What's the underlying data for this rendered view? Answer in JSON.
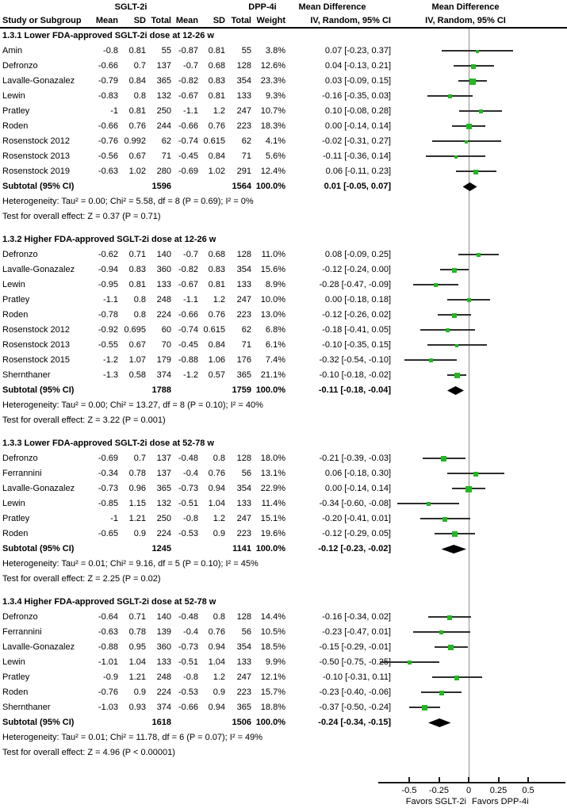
{
  "header": {
    "group1_label": "SGLT-2i",
    "group2_label": "DPP-4i",
    "effect_label": "Mean Difference",
    "method_label": "IV, Random, 95% CI",
    "study_col": "Study or Subgroup",
    "mean_col": "Mean",
    "sd_col": "SD",
    "total_col": "Total",
    "weight_col": "Weight",
    "plot_effect_label": "Mean Difference",
    "plot_method_label": "IV, Random, 95% CI"
  },
  "axis": {
    "tick_values": [
      -0.5,
      -0.25,
      0,
      0.25,
      0.5
    ],
    "tick_labels": [
      "-0.5",
      "-0.25",
      "0",
      "0.25",
      "0.5"
    ],
    "favors_left": "Favors SGLT-2i",
    "favors_right": "Favors DPP-4i"
  },
  "colors": {
    "marker_green": "#22b822",
    "ci_line": "#2e2e2e",
    "diamond": "#000000",
    "zero_line": "#909090"
  },
  "chart_data": {
    "type": "scatter",
    "subtype": "forest-plot",
    "effect_measure": "Mean Difference, IV, Random, 95% CI",
    "x_range": [
      -0.775,
      0.8
    ],
    "x_ticks": [
      -0.5,
      -0.25,
      0,
      0.25,
      0.5
    ],
    "sections": [
      {
        "title": "1.3.1 Lower FDA-approved SGLT-2i dose at 12-26 w",
        "studies": [
          {
            "name": "Amin",
            "mean1": "-0.8",
            "sd1": "0.81",
            "total1": "55",
            "mean2": "-0.87",
            "sd2": "0.81",
            "total2": "55",
            "weight": "3.8%",
            "wnum": 3.8,
            "ci_label": "0.07 [-0.23, 0.37]",
            "est": 0.07,
            "lo": -0.23,
            "hi": 0.37
          },
          {
            "name": "Defronzo",
            "mean1": "-0.66",
            "sd1": "0.7",
            "total1": "137",
            "mean2": "-0.7",
            "sd2": "0.68",
            "total2": "128",
            "weight": "12.6%",
            "wnum": 12.6,
            "ci_label": "0.04 [-0.13, 0.21]",
            "est": 0.04,
            "lo": -0.13,
            "hi": 0.21
          },
          {
            "name": "Lavalle-Gonazalez",
            "mean1": "-0.79",
            "sd1": "0.84",
            "total1": "365",
            "mean2": "-0.82",
            "sd2": "0.83",
            "total2": "354",
            "weight": "23.3%",
            "wnum": 23.3,
            "ci_label": "0.03 [-0.09, 0.15]",
            "est": 0.03,
            "lo": -0.09,
            "hi": 0.15
          },
          {
            "name": "Lewin",
            "mean1": "-0.83",
            "sd1": "0.8",
            "total1": "132",
            "mean2": "-0.67",
            "sd2": "0.81",
            "total2": "133",
            "weight": "9.3%",
            "wnum": 9.3,
            "ci_label": "-0.16 [-0.35, 0.03]",
            "est": -0.16,
            "lo": -0.35,
            "hi": 0.03
          },
          {
            "name": "Pratley",
            "mean1": "-1",
            "sd1": "0.81",
            "total1": "250",
            "mean2": "-1.1",
            "sd2": "1.2",
            "total2": "247",
            "weight": "10.7%",
            "wnum": 10.7,
            "ci_label": "0.10 [-0.08, 0.28]",
            "est": 0.1,
            "lo": -0.08,
            "hi": 0.28
          },
          {
            "name": "Roden",
            "mean1": "-0.66",
            "sd1": "0.76",
            "total1": "244",
            "mean2": "-0.66",
            "sd2": "0.76",
            "total2": "223",
            "weight": "18.3%",
            "wnum": 18.3,
            "ci_label": "0.00 [-0.14, 0.14]",
            "est": 0.0,
            "lo": -0.14,
            "hi": 0.14
          },
          {
            "name": "Rosenstock 2012",
            "mean1": "-0.76",
            "sd1": "0.992",
            "total1": "62",
            "mean2": "-0.74",
            "sd2": "0.615",
            "total2": "62",
            "weight": "4.1%",
            "wnum": 4.1,
            "ci_label": "-0.02 [-0.31, 0.27]",
            "est": -0.02,
            "lo": -0.31,
            "hi": 0.27
          },
          {
            "name": "Rosenstock 2013",
            "mean1": "-0.56",
            "sd1": "0.67",
            "total1": "71",
            "mean2": "-0.45",
            "sd2": "0.84",
            "total2": "71",
            "weight": "5.6%",
            "wnum": 5.6,
            "ci_label": "-0.11 [-0.36, 0.14]",
            "est": -0.11,
            "lo": -0.36,
            "hi": 0.14
          },
          {
            "name": "Rosenstock 2019",
            "mean1": "-0.63",
            "sd1": "1.02",
            "total1": "280",
            "mean2": "-0.69",
            "sd2": "1.02",
            "total2": "291",
            "weight": "12.4%",
            "wnum": 12.4,
            "ci_label": "0.06 [-0.11, 0.23]",
            "est": 0.06,
            "lo": -0.11,
            "hi": 0.23
          }
        ],
        "subtotal": {
          "label": "Subtotal (95% CI)",
          "total1": "1596",
          "total2": "1564",
          "weight": "100.0%",
          "ci_label": "0.01 [-0.05, 0.07]",
          "est": 0.01,
          "lo": -0.05,
          "hi": 0.07
        },
        "heterogeneity": "Heterogeneity: Tau² = 0.00; Chi² = 5.58, df = 8 (P = 0.69); I² = 0%",
        "overall_effect": "Test for overall effect: Z = 0.37 (P = 0.71)"
      },
      {
        "title": "1.3.2 Higher FDA-approved SGLT-2i dose at 12-26 w",
        "studies": [
          {
            "name": "Defronzo",
            "mean1": "-0.62",
            "sd1": "0.71",
            "total1": "140",
            "mean2": "-0.7",
            "sd2": "0.68",
            "total2": "128",
            "weight": "11.0%",
            "wnum": 11.0,
            "ci_label": "0.08 [-0.09, 0.25]",
            "est": 0.08,
            "lo": -0.09,
            "hi": 0.25
          },
          {
            "name": "Lavalle-Gonazalez",
            "mean1": "-0.94",
            "sd1": "0.83",
            "total1": "360",
            "mean2": "-0.82",
            "sd2": "0.83",
            "total2": "354",
            "weight": "15.6%",
            "wnum": 15.6,
            "ci_label": "-0.12 [-0.24, 0.00]",
            "est": -0.12,
            "lo": -0.24,
            "hi": 0.0
          },
          {
            "name": "Lewin",
            "mean1": "-0.95",
            "sd1": "0.81",
            "total1": "133",
            "mean2": "-0.67",
            "sd2": "0.81",
            "total2": "133",
            "weight": "8.9%",
            "wnum": 8.9,
            "ci_label": "-0.28 [-0.47, -0.09]",
            "est": -0.28,
            "lo": -0.47,
            "hi": -0.09
          },
          {
            "name": "Pratley",
            "mean1": "-1.1",
            "sd1": "0.8",
            "total1": "248",
            "mean2": "-1.1",
            "sd2": "1.2",
            "total2": "247",
            "weight": "10.0%",
            "wnum": 10.0,
            "ci_label": "0.00 [-0.18, 0.18]",
            "est": 0.0,
            "lo": -0.18,
            "hi": 0.18
          },
          {
            "name": "Roden",
            "mean1": "-0.78",
            "sd1": "0.8",
            "total1": "224",
            "mean2": "-0.66",
            "sd2": "0.76",
            "total2": "223",
            "weight": "13.0%",
            "wnum": 13.0,
            "ci_label": "-0.12 [-0.26, 0.02]",
            "est": -0.12,
            "lo": -0.26,
            "hi": 0.02
          },
          {
            "name": "Rosenstock 2012",
            "mean1": "-0.92",
            "sd1": "0.695",
            "total1": "60",
            "mean2": "-0.74",
            "sd2": "0.615",
            "total2": "62",
            "weight": "6.8%",
            "wnum": 6.8,
            "ci_label": "-0.18 [-0.41, 0.05]",
            "est": -0.18,
            "lo": -0.41,
            "hi": 0.05
          },
          {
            "name": "Rosenstock 2013",
            "mean1": "-0.55",
            "sd1": "0.67",
            "total1": "70",
            "mean2": "-0.45",
            "sd2": "0.84",
            "total2": "71",
            "weight": "6.1%",
            "wnum": 6.1,
            "ci_label": "-0.10 [-0.35, 0.15]",
            "est": -0.1,
            "lo": -0.35,
            "hi": 0.15
          },
          {
            "name": "Rosenstock 2015",
            "mean1": "-1.2",
            "sd1": "1.07",
            "total1": "179",
            "mean2": "-0.88",
            "sd2": "1.06",
            "total2": "176",
            "weight": "7.4%",
            "wnum": 7.4,
            "ci_label": "-0.32 [-0.54, -0.10]",
            "est": -0.32,
            "lo": -0.54,
            "hi": -0.1
          },
          {
            "name": "Shernthaner",
            "mean1": "-1.3",
            "sd1": "0.58",
            "total1": "374",
            "mean2": "-1.2",
            "sd2": "0.57",
            "total2": "365",
            "weight": "21.1%",
            "wnum": 21.1,
            "ci_label": "-0.10 [-0.18, -0.02]",
            "est": -0.1,
            "lo": -0.18,
            "hi": -0.02
          }
        ],
        "subtotal": {
          "label": "Subtotal (95% CI)",
          "total1": "1788",
          "total2": "1759",
          "weight": "100.0%",
          "ci_label": "-0.11 [-0.18, -0.04]",
          "est": -0.11,
          "lo": -0.18,
          "hi": -0.04
        },
        "heterogeneity": "Heterogeneity: Tau² = 0.00; Chi² = 13.27, df = 8 (P = 0.10); I² = 40%",
        "overall_effect": "Test for overall effect: Z = 3.22 (P = 0.001)"
      },
      {
        "title": "1.3.3 Lower FDA-approved SGLT-2i dose at 52-78 w",
        "studies": [
          {
            "name": "Defronzo",
            "mean1": "-0.69",
            "sd1": "0.7",
            "total1": "137",
            "mean2": "-0.48",
            "sd2": "0.8",
            "total2": "128",
            "weight": "18.0%",
            "wnum": 18.0,
            "ci_label": "-0.21 [-0.39, -0.03]",
            "est": -0.21,
            "lo": -0.39,
            "hi": -0.03
          },
          {
            "name": "Ferrannini",
            "mean1": "-0.34",
            "sd1": "0.78",
            "total1": "137",
            "mean2": "-0.4",
            "sd2": "0.76",
            "total2": "56",
            "weight": "13.1%",
            "wnum": 13.1,
            "ci_label": "0.06 [-0.18, 0.30]",
            "est": 0.06,
            "lo": -0.18,
            "hi": 0.3
          },
          {
            "name": "Lavalle-Gonazalez",
            "mean1": "-0.73",
            "sd1": "0.96",
            "total1": "365",
            "mean2": "-0.73",
            "sd2": "0.94",
            "total2": "354",
            "weight": "22.9%",
            "wnum": 22.9,
            "ci_label": "0.00 [-0.14, 0.14]",
            "est": 0.0,
            "lo": -0.14,
            "hi": 0.14
          },
          {
            "name": "Lewin",
            "mean1": "-0.85",
            "sd1": "1.15",
            "total1": "132",
            "mean2": "-0.51",
            "sd2": "1.04",
            "total2": "133",
            "weight": "11.4%",
            "wnum": 11.4,
            "ci_label": "-0.34 [-0.60, -0.08]",
            "est": -0.34,
            "lo": -0.6,
            "hi": -0.08
          },
          {
            "name": "Pratley",
            "mean1": "-1",
            "sd1": "1.21",
            "total1": "250",
            "mean2": "-0.8",
            "sd2": "1.2",
            "total2": "247",
            "weight": "15.1%",
            "wnum": 15.1,
            "ci_label": "-0.20 [-0.41, 0.01]",
            "est": -0.2,
            "lo": -0.41,
            "hi": 0.01
          },
          {
            "name": "Roden",
            "mean1": "-0.65",
            "sd1": "0.9",
            "total1": "224",
            "mean2": "-0.53",
            "sd2": "0.9",
            "total2": "223",
            "weight": "19.6%",
            "wnum": 19.6,
            "ci_label": "-0.12 [-0.29, 0.05]",
            "est": -0.12,
            "lo": -0.29,
            "hi": 0.05
          }
        ],
        "subtotal": {
          "label": "Subtotal (95% CI)",
          "total1": "1245",
          "total2": "1141",
          "weight": "100.0%",
          "ci_label": "-0.12 [-0.23, -0.02]",
          "est": -0.12,
          "lo": -0.23,
          "hi": -0.02
        },
        "heterogeneity": "Heterogeneity: Tau² = 0.01; Chi² = 9.16, df = 5 (P = 0.10); I² = 45%",
        "overall_effect": "Test for overall effect: Z = 2.25 (P = 0.02)"
      },
      {
        "title": "1.3.4 Higher FDA-approved SGLT-2i dose at 52-78 w",
        "studies": [
          {
            "name": "Defronzo",
            "mean1": "-0.64",
            "sd1": "0.71",
            "total1": "140",
            "mean2": "-0.48",
            "sd2": "0.8",
            "total2": "128",
            "weight": "14.4%",
            "wnum": 14.4,
            "ci_label": "-0.16 [-0.34, 0.02]",
            "est": -0.16,
            "lo": -0.34,
            "hi": 0.02
          },
          {
            "name": "Ferrannini",
            "mean1": "-0.63",
            "sd1": "0.78",
            "total1": "139",
            "mean2": "-0.4",
            "sd2": "0.76",
            "total2": "56",
            "weight": "10.5%",
            "wnum": 10.5,
            "ci_label": "-0.23 [-0.47, 0.01]",
            "est": -0.23,
            "lo": -0.47,
            "hi": 0.01
          },
          {
            "name": "Lavalle-Gonazalez",
            "mean1": "-0.88",
            "sd1": "0.95",
            "total1": "360",
            "mean2": "-0.73",
            "sd2": "0.94",
            "total2": "354",
            "weight": "18.5%",
            "wnum": 18.5,
            "ci_label": "-0.15 [-0.29, -0.01]",
            "est": -0.15,
            "lo": -0.29,
            "hi": -0.01
          },
          {
            "name": "Lewin",
            "mean1": "-1.01",
            "sd1": "1.04",
            "total1": "133",
            "mean2": "-0.51",
            "sd2": "1.04",
            "total2": "133",
            "weight": "9.9%",
            "wnum": 9.9,
            "ci_label": "-0.50 [-0.75, -0.25]",
            "est": -0.5,
            "lo": -0.75,
            "hi": -0.25
          },
          {
            "name": "Pratley",
            "mean1": "-0.9",
            "sd1": "1.21",
            "total1": "248",
            "mean2": "-0.8",
            "sd2": "1.2",
            "total2": "247",
            "weight": "12.1%",
            "wnum": 12.1,
            "ci_label": "-0.10 [-0.31, 0.11]",
            "est": -0.1,
            "lo": -0.31,
            "hi": 0.11
          },
          {
            "name": "Roden",
            "mean1": "-0.76",
            "sd1": "0.9",
            "total1": "224",
            "mean2": "-0.53",
            "sd2": "0.9",
            "total2": "223",
            "weight": "15.7%",
            "wnum": 15.7,
            "ci_label": "-0.23 [-0.40, -0.06]",
            "est": -0.23,
            "lo": -0.4,
            "hi": -0.06
          },
          {
            "name": "Shernthaner",
            "mean1": "-1.03",
            "sd1": "0.93",
            "total1": "374",
            "mean2": "-0.66",
            "sd2": "0.94",
            "total2": "365",
            "weight": "18.8%",
            "wnum": 18.8,
            "ci_label": "-0.37 [-0.50, -0.24]",
            "est": -0.37,
            "lo": -0.5,
            "hi": -0.24
          }
        ],
        "subtotal": {
          "label": "Subtotal (95% CI)",
          "total1": "1618",
          "total2": "1506",
          "weight": "100.0%",
          "ci_label": "-0.24 [-0.34, -0.15]",
          "est": -0.24,
          "lo": -0.34,
          "hi": -0.15
        },
        "heterogeneity": "Heterogeneity: Tau² = 0.01; Chi² = 11.78, df = 6 (P = 0.07); I² = 49%",
        "overall_effect": "Test for overall effect: Z = 4.96 (P < 0.00001)"
      }
    ]
  }
}
